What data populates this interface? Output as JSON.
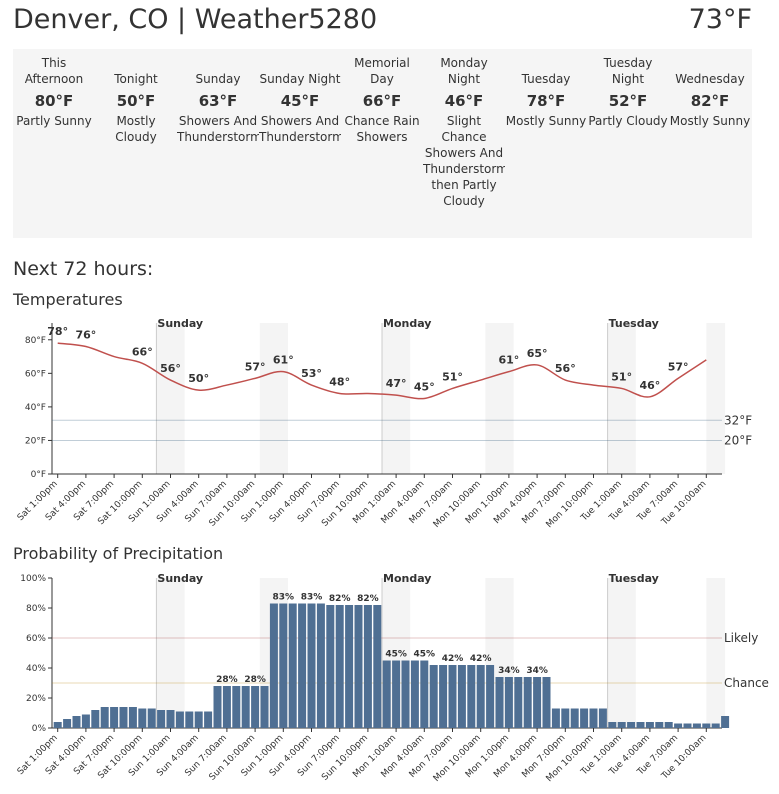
{
  "header": {
    "title": "Denver, CO | Weather5280",
    "current_temp": "73°F"
  },
  "forecast": [
    {
      "name": "This Afternoon",
      "temp": "80°F",
      "description": "Partly Sunny"
    },
    {
      "name": "Tonight",
      "temp": "50°F",
      "description": "Mostly Cloudy"
    },
    {
      "name": "Sunday",
      "temp": "63°F",
      "description": "Showers And Thunderstorms"
    },
    {
      "name": "Sunday Night",
      "temp": "45°F",
      "description": "Showers And Thunderstorms"
    },
    {
      "name": "Memorial Day",
      "temp": "66°F",
      "description": "Chance Rain Showers"
    },
    {
      "name": "Monday Night",
      "temp": "46°F",
      "description": "Slight Chance Showers And Thunderstorms then Partly Cloudy"
    },
    {
      "name": "Tuesday",
      "temp": "78°F",
      "description": "Mostly Sunny"
    },
    {
      "name": "Tuesday Night",
      "temp": "52°F",
      "description": "Partly Cloudy"
    },
    {
      "name": "Wednesday",
      "temp": "82°F",
      "description": "Mostly Sunny"
    }
  ],
  "section_title": "Next 72 hours:",
  "chart_data": [
    {
      "type": "line",
      "title": "Temperatures",
      "color": "#c0504d",
      "categories": [
        "Sat 1:00pm",
        "Sat 4:00pm",
        "Sat 7:00pm",
        "Sat 10:00pm",
        "Sun 1:00am",
        "Sun 4:00am",
        "Sun 7:00am",
        "Sun 10:00am",
        "Sun 1:00pm",
        "Sun 4:00pm",
        "Sun 7:00pm",
        "Sun 10:00pm",
        "Mon 1:00am",
        "Mon 4:00am",
        "Mon 7:00am",
        "Mon 10:00am",
        "Mon 1:00pm",
        "Mon 4:00pm",
        "Mon 7:00pm",
        "Mon 10:00pm",
        "Tue 1:00am",
        "Tue 4:00am",
        "Tue 7:00am",
        "Tue 10:00am"
      ],
      "values": [
        78,
        76,
        70,
        66,
        56,
        50,
        53,
        57,
        61,
        53,
        48,
        48,
        47,
        45,
        51,
        56,
        61,
        65,
        56,
        53,
        51,
        46,
        57,
        68
      ],
      "value_labels": [
        "78°",
        "76°",
        null,
        "66°",
        "56°",
        "50°",
        null,
        "57°",
        "61°",
        "53°",
        "48°",
        null,
        "47°",
        "45°",
        "51°",
        null,
        "61°",
        "65°",
        "56°",
        null,
        "51°",
        "46°",
        "57°",
        null
      ],
      "ylim": [
        0,
        90
      ],
      "yticks": [
        {
          "value": 0,
          "label": "0°F"
        },
        {
          "value": 20,
          "label": "20°F"
        },
        {
          "value": 40,
          "label": "40°F"
        },
        {
          "value": 60,
          "label": "60°F"
        },
        {
          "value": 80,
          "label": "80°F"
        }
      ],
      "reference_lines": [
        {
          "value": 32,
          "label": "32°F",
          "color": "#2e5a7a"
        },
        {
          "value": 20,
          "label": "20°F",
          "color": "#2e5a7a"
        }
      ],
      "annotations": [
        "Sunday",
        "Monday",
        "Tuesday"
      ]
    },
    {
      "type": "bar",
      "title": "Probability of Precipitation",
      "color": "#4f6f93",
      "categories": [
        "Sat 1:00pm",
        null,
        null,
        "Sat 4:00pm",
        null,
        null,
        "Sat 7:00pm",
        null,
        null,
        "Sat 10:00pm",
        null,
        null,
        "Sun 1:00am",
        null,
        null,
        "Sun 4:00am",
        null,
        null,
        "Sun 7:00am",
        null,
        null,
        "Sun 10:00am",
        null,
        null,
        "Sun 1:00pm",
        null,
        null,
        "Sun 4:00pm",
        null,
        null,
        "Sun 7:00pm",
        null,
        null,
        "Sun 10:00pm",
        null,
        null,
        "Mon 1:00am",
        null,
        null,
        "Mon 4:00am",
        null,
        null,
        "Mon 7:00am",
        null,
        null,
        "Mon 10:00am",
        null,
        null,
        "Mon 1:00pm",
        null,
        null,
        "Mon 4:00pm",
        null,
        null,
        "Mon 7:00pm",
        null,
        null,
        "Mon 10:00pm",
        null,
        null,
        "Tue 1:00am",
        null,
        null,
        "Tue 4:00am",
        null,
        null,
        "Tue 7:00am",
        null,
        null,
        "Tue 10:00am",
        null,
        null
      ],
      "values": [
        4,
        6,
        8,
        9,
        12,
        14,
        14,
        14,
        14,
        13,
        13,
        12,
        12,
        11,
        11,
        11,
        11,
        28,
        28,
        28,
        28,
        28,
        28,
        83,
        83,
        83,
        83,
        83,
        83,
        82,
        82,
        82,
        82,
        82,
        82,
        45,
        45,
        45,
        45,
        45,
        42,
        42,
        42,
        42,
        42,
        42,
        42,
        34,
        34,
        34,
        34,
        34,
        34,
        13,
        13,
        13,
        13,
        13,
        13,
        4,
        4,
        4,
        4,
        4,
        4,
        4,
        3,
        3,
        3,
        3,
        3,
        8
      ],
      "value_labels": [
        null,
        null,
        null,
        null,
        null,
        null,
        null,
        null,
        null,
        null,
        null,
        null,
        null,
        null,
        null,
        null,
        null,
        null,
        "28%",
        null,
        null,
        "28%",
        null,
        null,
        "83%",
        null,
        null,
        "83%",
        null,
        null,
        "82%",
        null,
        null,
        "82%",
        null,
        null,
        "45%",
        null,
        null,
        "45%",
        null,
        null,
        "42%",
        null,
        null,
        "42%",
        null,
        null,
        "34%",
        null,
        null,
        "34%",
        null,
        null,
        null,
        null,
        null,
        null,
        null,
        null,
        null,
        null,
        null,
        null,
        null,
        null,
        null,
        null,
        null,
        null,
        null,
        null
      ],
      "ylim": [
        0,
        100
      ],
      "yticks": [
        {
          "value": 0,
          "label": "0%"
        },
        {
          "value": 20,
          "label": "20%"
        },
        {
          "value": 40,
          "label": "40%"
        },
        {
          "value": 60,
          "label": "60%"
        },
        {
          "value": 80,
          "label": "80%"
        },
        {
          "value": 100,
          "label": "100%"
        }
      ],
      "reference_lines": [
        {
          "value": 60,
          "label": "Likely",
          "color": "#a83a3a"
        },
        {
          "value": 30,
          "label": "Chance",
          "color": "#b8860b"
        }
      ],
      "annotations": [
        "Sunday",
        "Monday",
        "Tuesday"
      ]
    }
  ]
}
